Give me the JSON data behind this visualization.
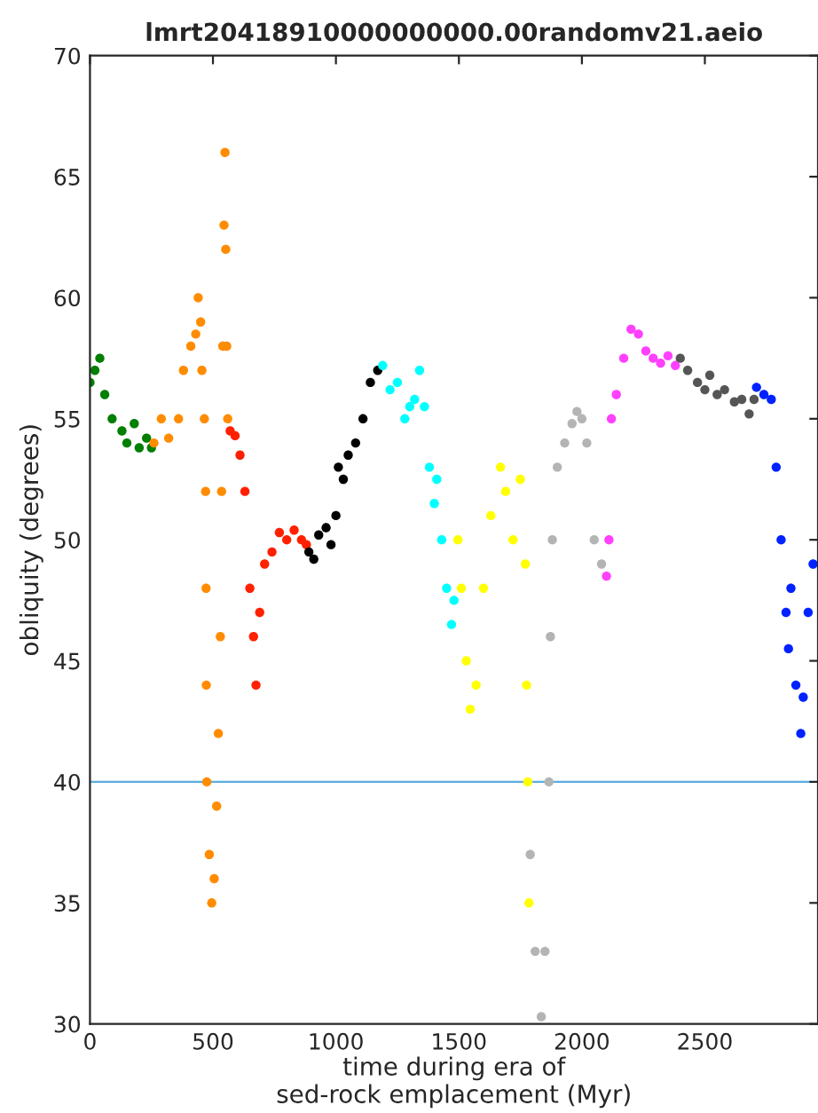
{
  "chart_data": {
    "type": "scatter",
    "title": "lmrt20418910000000000.00randomv21.aeio",
    "xlabel": "time during era of\nsed-rock emplacement (Myr)",
    "ylabel": "obliquity (degrees)",
    "xlim": [
      0,
      2960
    ],
    "ylim": [
      30,
      70
    ],
    "xticks": [
      0,
      500,
      1000,
      1500,
      2000,
      2500
    ],
    "yticks": [
      30,
      35,
      40,
      45,
      50,
      55,
      60,
      65,
      70
    ],
    "grid": false,
    "legend": false,
    "marker": "circle",
    "ref_lines": [
      {
        "axis": "y",
        "value": 40,
        "color": "#5aaee0"
      }
    ],
    "series": [
      {
        "color": "#007f00",
        "x": [
          0,
          20,
          40,
          60,
          90,
          130,
          150,
          180,
          200,
          230,
          250
        ],
        "values": [
          56.5,
          57,
          57.5,
          56,
          55,
          54.5,
          54,
          54.8,
          53.8,
          54.2,
          53.8
        ]
      },
      {
        "color": "#ff8c00",
        "x": [
          260,
          290,
          320,
          360,
          380,
          410,
          430,
          440,
          450,
          455,
          465,
          470,
          472,
          473,
          475,
          485,
          495,
          505,
          515,
          522,
          530,
          535,
          540,
          545,
          549,
          552,
          556,
          560
        ],
        "values": [
          54,
          55,
          54.2,
          55,
          57,
          58,
          58.5,
          60,
          59,
          57,
          55,
          52,
          48,
          44,
          40,
          37,
          35,
          36,
          39,
          42,
          46,
          52,
          58,
          63,
          66,
          62,
          58,
          55
        ]
      },
      {
        "color": "#ff2000",
        "x": [
          570,
          590,
          610,
          630,
          650,
          665,
          675,
          690,
          710,
          740,
          770,
          800,
          830,
          860,
          880
        ],
        "values": [
          54.5,
          54.3,
          53.5,
          52,
          48,
          46,
          44,
          47,
          49,
          49.5,
          50.3,
          50,
          50.4,
          50,
          49.8
        ]
      },
      {
        "color": "#000000",
        "x": [
          890,
          910,
          930,
          960,
          980,
          1000,
          1010,
          1030,
          1050,
          1080,
          1110,
          1140,
          1170
        ],
        "values": [
          49.5,
          49.2,
          50.2,
          50.5,
          49.8,
          51,
          53,
          52.5,
          53.5,
          54,
          55,
          56.5,
          57
        ]
      },
      {
        "color": "#00ffff",
        "x": [
          1190,
          1220,
          1250,
          1280,
          1300,
          1320,
          1340,
          1360,
          1380,
          1400,
          1410,
          1430,
          1450,
          1470,
          1480
        ],
        "values": [
          57.2,
          56.2,
          56.5,
          55,
          55.5,
          55.8,
          57,
          55.5,
          53,
          51.5,
          52.5,
          50,
          48,
          46.5,
          47.5
        ]
      },
      {
        "color": "#ffff00",
        "x": [
          1496,
          1510,
          1530,
          1546,
          1570,
          1600,
          1630,
          1669,
          1690,
          1720,
          1750,
          1770,
          1775,
          1780,
          1785
        ],
        "values": [
          50,
          48,
          45,
          43,
          44,
          48,
          51,
          53,
          52,
          50,
          52.5,
          49,
          44,
          40,
          35
        ]
      },
      {
        "color": "#b4b4b4",
        "x": [
          1790,
          1810,
          1835,
          1850,
          1866,
          1872,
          1880,
          1900,
          1930,
          1960,
          1980,
          2000,
          2020,
          2050,
          2080
        ],
        "values": [
          37,
          33,
          30.3,
          33,
          40,
          46,
          50,
          53,
          54,
          54.8,
          55.3,
          55,
          54,
          50,
          49
        ]
      },
      {
        "color": "#ff40ff",
        "x": [
          2100,
          2110,
          2120,
          2140,
          2170,
          2200,
          2230,
          2260,
          2290,
          2320,
          2350,
          2380
        ],
        "values": [
          48.5,
          50,
          55,
          56,
          57.5,
          58.7,
          58.5,
          57.8,
          57.5,
          57.3,
          57.6,
          57.2
        ]
      },
      {
        "color": "#555555",
        "x": [
          2400,
          2430,
          2470,
          2500,
          2520,
          2550,
          2580,
          2620,
          2650,
          2680,
          2700
        ],
        "values": [
          57.5,
          57,
          56.5,
          56.2,
          56.8,
          56,
          56.2,
          55.7,
          55.8,
          55.2,
          55.8
        ]
      },
      {
        "color": "#0022ff",
        "x": [
          2710,
          2740,
          2770,
          2790,
          2810,
          2830,
          2840,
          2850,
          2870,
          2890,
          2900,
          2920,
          2940
        ],
        "values": [
          56.3,
          56,
          55.8,
          53,
          50,
          47,
          45.5,
          48,
          44,
          42,
          43.5,
          47,
          49
        ]
      }
    ]
  }
}
